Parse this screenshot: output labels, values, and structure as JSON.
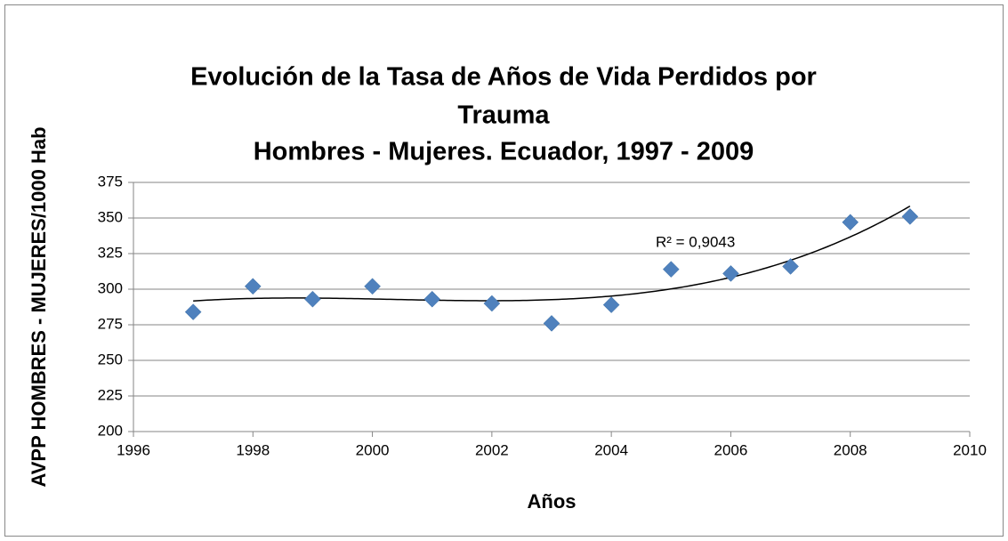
{
  "chart_data": {
    "type": "scatter",
    "title": [
      "Evolución de la Tasa de Años de Vida Perdidos por",
      "Trauma",
      "Hombres - Mujeres. Ecuador, 1997 - 2009"
    ],
    "x_label": "Años",
    "y_label": "AVPP HOMBRES - MUJERES/1000 Hab",
    "x": [
      1997,
      1998,
      1999,
      2000,
      2001,
      2002,
      2003,
      2004,
      2005,
      2006,
      2007,
      2008,
      2009
    ],
    "series": [
      {
        "name": "AVPP",
        "color": "#4f81bd",
        "values": [
          284,
          302,
          293,
          302,
          293,
          290,
          276,
          289,
          314,
          311,
          316,
          347,
          351
        ]
      }
    ],
    "trendline": {
      "type": "polynomial",
      "order": 3,
      "color": "#000000"
    },
    "annotation": "R² = 0,9043",
    "xlim": [
      1996,
      2010
    ],
    "xticks": [
      1996,
      1998,
      2000,
      2002,
      2004,
      2006,
      2008,
      2010
    ],
    "ylim": [
      200,
      375
    ],
    "yticks": [
      200,
      225,
      250,
      275,
      300,
      325,
      350,
      375
    ],
    "grid": true
  }
}
